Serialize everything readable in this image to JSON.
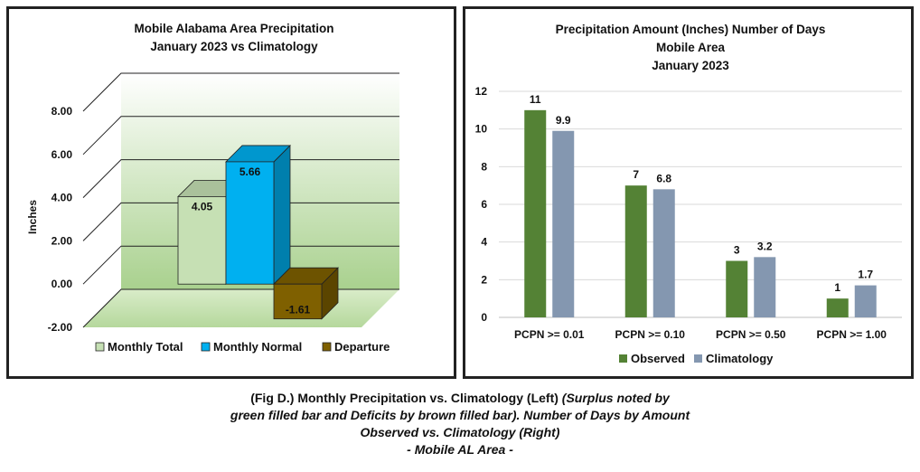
{
  "chart_data": [
    {
      "type": "bar",
      "title": [
        "Mobile Alabama Area Precipitation",
        "January 2023 vs Climatology"
      ],
      "ylabel": "Inches",
      "ylim": [
        -2,
        8
      ],
      "yticks": [
        "-2.00",
        "0.00",
        "2.00",
        "4.00",
        "6.00",
        "8.00"
      ],
      "grid": true,
      "legend": "bottom",
      "series": [
        {
          "name": "Monthly Total",
          "values": [
            4.05
          ],
          "label": "4.05",
          "color": "#c6e0b4"
        },
        {
          "name": "Monthly Normal",
          "values": [
            5.66
          ],
          "label": "5.66",
          "color": "#00b0f0"
        },
        {
          "name": "Departure",
          "values": [
            -1.61
          ],
          "label": "-1.61",
          "color": "#7f6000"
        }
      ]
    },
    {
      "type": "bar",
      "title": [
        "Precipitation Amount (Inches) Number of Days",
        "Mobile Area",
        "January 2023"
      ],
      "categories": [
        "PCPN >= 0.01",
        "PCPN >= 0.10",
        "PCPN >= 0.50",
        "PCPN >= 1.00"
      ],
      "ylim": [
        0,
        12
      ],
      "yticks": [
        "0",
        "2",
        "4",
        "6",
        "8",
        "10",
        "12"
      ],
      "grid": true,
      "legend": "bottom",
      "series": [
        {
          "name": "Observed",
          "values": [
            11,
            7,
            3,
            1
          ],
          "labels": [
            "11",
            "7",
            "3",
            "1"
          ],
          "color": "#548235"
        },
        {
          "name": "Climatology",
          "values": [
            9.9,
            6.8,
            3.2,
            1.7
          ],
          "labels": [
            "9.9",
            "6.8",
            "3.2",
            "1.7"
          ],
          "color": "#8497b0"
        }
      ]
    }
  ],
  "caption": {
    "line1_normal": "(Fig D.) Monthly Precipitation vs. Climatology (Left) ",
    "line1_italic": "(Surplus noted by",
    "line2": "green filled bar and Deficits by brown filled bar). Number of Days by Amount",
    "line3": "Observed vs. Climatology (Right)",
    "line4": "- Mobile AL Area -"
  }
}
